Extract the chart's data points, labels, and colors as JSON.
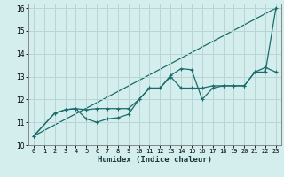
{
  "xlabel": "Humidex (Indice chaleur)",
  "bg_color": "#d4eeee",
  "grid_color": "#b8d4d4",
  "line_color": "#1a6b6b",
  "xlim": [
    -0.5,
    23.5
  ],
  "ylim": [
    10,
    16.2
  ],
  "xticks": [
    0,
    1,
    2,
    3,
    4,
    5,
    6,
    7,
    8,
    9,
    10,
    11,
    12,
    13,
    14,
    15,
    16,
    17,
    18,
    19,
    20,
    21,
    22,
    23
  ],
  "yticks": [
    10,
    11,
    12,
    13,
    14,
    15,
    16
  ],
  "series": [
    {
      "x": [
        0,
        2,
        3,
        4,
        5,
        6,
        7,
        8,
        9,
        10,
        11,
        12,
        13,
        14,
        15,
        16,
        17,
        18,
        19,
        20,
        21,
        22,
        23
      ],
      "y": [
        10.4,
        11.4,
        11.55,
        11.6,
        11.15,
        11.0,
        11.15,
        11.2,
        11.35,
        12.0,
        12.5,
        12.5,
        13.05,
        13.35,
        13.3,
        12.0,
        12.5,
        12.6,
        12.6,
        12.6,
        13.2,
        13.4,
        13.2
      ]
    },
    {
      "x": [
        0,
        2,
        3,
        4,
        5,
        6,
        7,
        8,
        9,
        10,
        11,
        12,
        13,
        14,
        15,
        16,
        17,
        18,
        19,
        20,
        21,
        22,
        23
      ],
      "y": [
        10.4,
        11.4,
        11.55,
        11.6,
        11.55,
        11.6,
        11.6,
        11.6,
        11.6,
        12.0,
        12.5,
        12.5,
        13.0,
        12.5,
        12.5,
        12.5,
        12.6,
        12.6,
        12.6,
        12.6,
        13.2,
        13.2,
        16.0
      ]
    },
    {
      "x": [
        0,
        23
      ],
      "y": [
        10.4,
        16.0
      ]
    }
  ]
}
